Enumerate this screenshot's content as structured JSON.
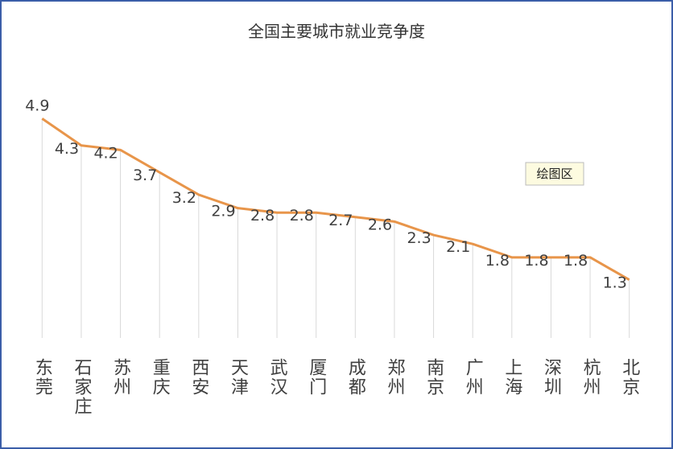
{
  "chart_data": {
    "type": "line",
    "title": "全国主要城市就业竞争度",
    "categories": [
      "东莞",
      "石家庄",
      "苏州",
      "重庆",
      "西安",
      "天津",
      "武汉",
      "厦门",
      "成都",
      "郑州",
      "南京",
      "广州",
      "上海",
      "深圳",
      "杭州",
      "北京"
    ],
    "values": [
      4.9,
      4.3,
      4.2,
      3.7,
      3.2,
      2.9,
      2.8,
      2.8,
      2.7,
      2.6,
      2.3,
      2.1,
      1.8,
      1.8,
      1.8,
      1.3
    ],
    "color": "#e8954a",
    "ylim": [
      0,
      5.5
    ],
    "drop_lines": true,
    "tooltip": "绘图区"
  }
}
